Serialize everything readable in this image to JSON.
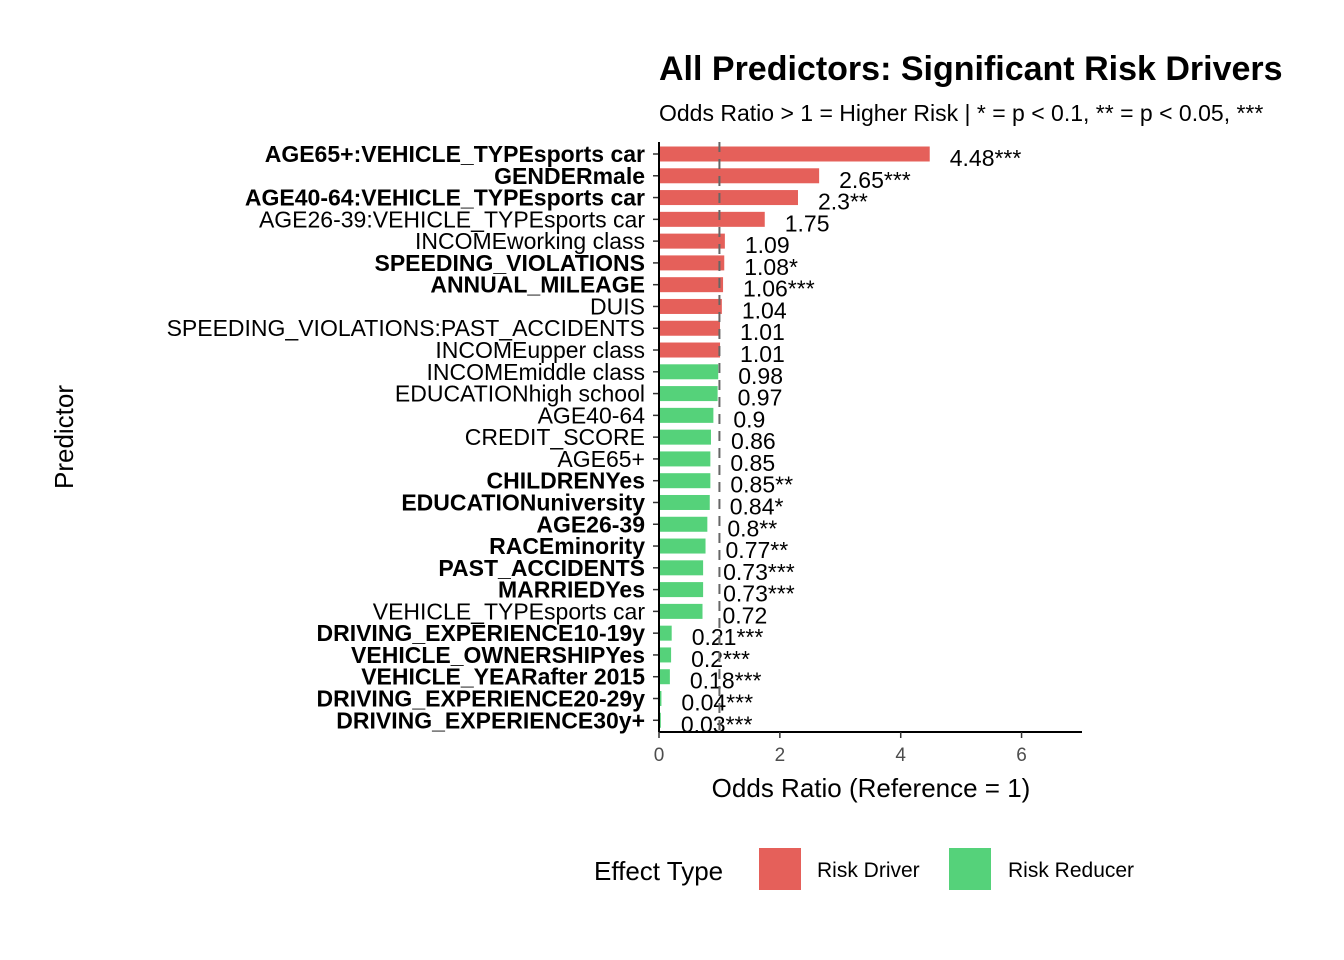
{
  "chart_data": {
    "type": "bar",
    "orientation": "horizontal",
    "title": "All Predictors: Significant Risk Drivers",
    "subtitle": "Odds Ratio > 1 = Higher Risk | * = p < 0.1, ** = p < 0.05, ***",
    "xlabel": "Odds Ratio (Reference = 1)",
    "ylabel": "Predictor",
    "xlim": [
      0,
      7
    ],
    "x_ticks": [
      0,
      2,
      4,
      6
    ],
    "reference_line": 1,
    "grid": false,
    "legend": {
      "title": "Effect Type",
      "position": "bottom",
      "entries": [
        {
          "label": "Risk Driver",
          "color": "#E5605A"
        },
        {
          "label": "Risk Reducer",
          "color": "#55D27A"
        }
      ]
    },
    "categories": [
      "AGE65+:VEHICLE_TYPEsports car",
      "GENDERmale",
      "AGE40-64:VEHICLE_TYPEsports car",
      "AGE26-39:VEHICLE_TYPEsports car",
      "INCOMEworking class",
      "SPEEDING_VIOLATIONS",
      "ANNUAL_MILEAGE",
      "DUIS",
      "SPEEDING_VIOLATIONS:PAST_ACCIDENTS",
      "INCOMEupper class",
      "INCOMEmiddle class",
      "EDUCATIONhigh school",
      "AGE40-64",
      "CREDIT_SCORE",
      "AGE65+",
      "CHILDRENYes",
      "EDUCATIONuniversity",
      "AGE26-39",
      "RACEminority",
      "PAST_ACCIDENTS",
      "MARRIEDYes",
      "VEHICLE_TYPEsports car",
      "DRIVING_EXPERIENCE10-19y",
      "VEHICLE_OWNERSHIPYes",
      "VEHICLE_YEARafter 2015",
      "DRIVING_EXPERIENCE20-29y",
      "DRIVING_EXPERIENCE30y+"
    ],
    "values": [
      4.48,
      2.65,
      2.3,
      1.75,
      1.09,
      1.08,
      1.06,
      1.04,
      1.01,
      1.01,
      0.98,
      0.97,
      0.9,
      0.86,
      0.85,
      0.85,
      0.84,
      0.8,
      0.77,
      0.73,
      0.73,
      0.72,
      0.21,
      0.2,
      0.18,
      0.04,
      0.03
    ],
    "data_labels": [
      "4.48***",
      "2.65***",
      "2.3**",
      "1.75",
      "1.09",
      "1.08*",
      "1.06***",
      "1.04",
      "1.01",
      "1.01",
      "0.98",
      "0.97",
      "0.9",
      "0.86",
      "0.85",
      "0.85**",
      "0.84*",
      "0.8**",
      "0.77**",
      "0.73***",
      "0.73***",
      "0.72",
      "0.21***",
      "0.2***",
      "0.18***",
      "0.04***",
      "0.03***"
    ],
    "effect": [
      "Risk Driver",
      "Risk Driver",
      "Risk Driver",
      "Risk Driver",
      "Risk Driver",
      "Risk Driver",
      "Risk Driver",
      "Risk Driver",
      "Risk Driver",
      "Risk Driver",
      "Risk Reducer",
      "Risk Reducer",
      "Risk Reducer",
      "Risk Reducer",
      "Risk Reducer",
      "Risk Reducer",
      "Risk Reducer",
      "Risk Reducer",
      "Risk Reducer",
      "Risk Reducer",
      "Risk Reducer",
      "Risk Reducer",
      "Risk Reducer",
      "Risk Reducer",
      "Risk Reducer",
      "Risk Reducer",
      "Risk Reducer"
    ],
    "significant": [
      true,
      true,
      true,
      false,
      false,
      true,
      true,
      false,
      false,
      false,
      false,
      false,
      false,
      false,
      false,
      true,
      true,
      true,
      true,
      true,
      true,
      false,
      true,
      true,
      true,
      true,
      true
    ]
  }
}
